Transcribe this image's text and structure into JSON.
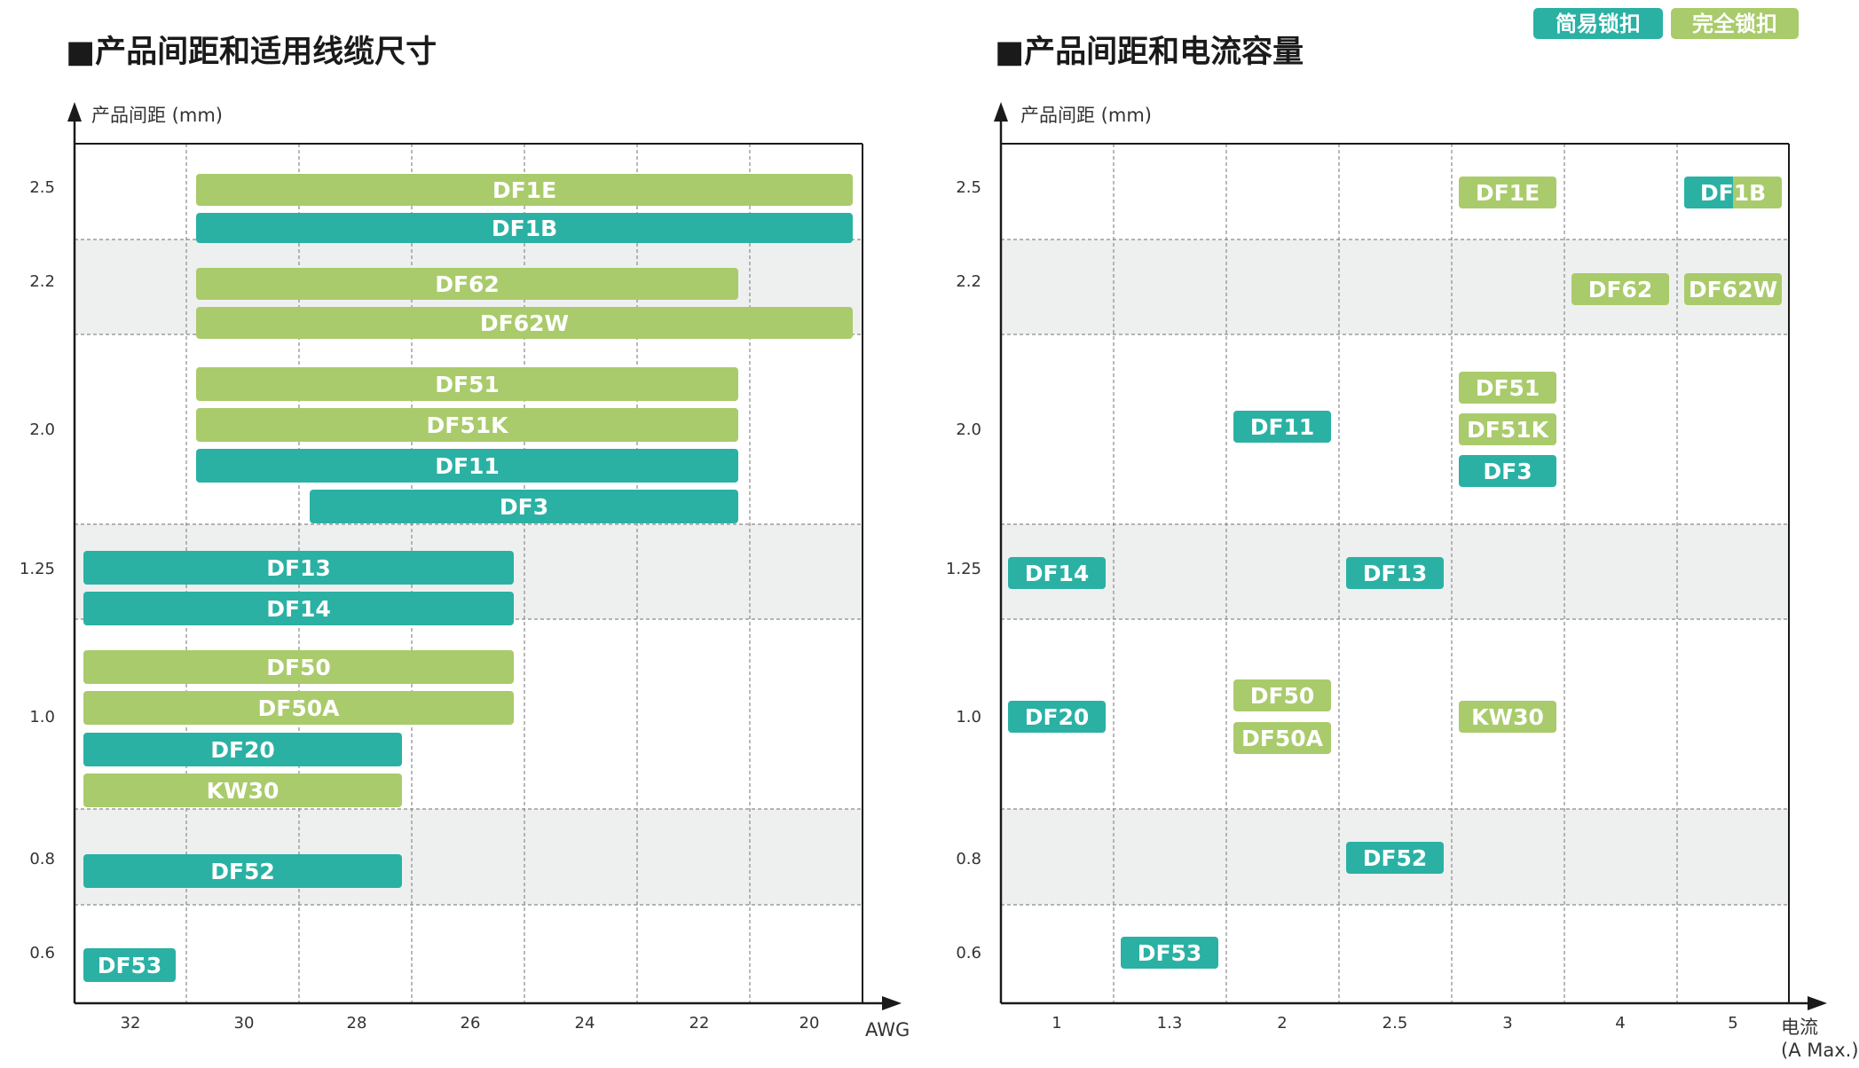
{
  "legend": [
    {
      "label": "简易锁扣",
      "color": "#2ab1a4"
    },
    {
      "label": "完全锁扣",
      "color": "#a9cb6b"
    }
  ],
  "chart_data": [
    {
      "type": "bar",
      "title": "■产品间距和适用线缆尺寸",
      "ylabel": "产品间距 (mm)",
      "xlabel": "AWG",
      "x_ticks": [
        "32",
        "30",
        "28",
        "26",
        "24",
        "22",
        "20"
      ],
      "y_ticks": [
        "2.5",
        "2.2",
        "2.0",
        "1.25",
        "1.0",
        "0.8",
        "0.6"
      ],
      "series": [
        {
          "name": "简易锁扣",
          "color": "#2ab1a4"
        },
        {
          "name": "完全锁扣",
          "color": "#a9cb6b"
        }
      ],
      "bars": [
        {
          "label": "DF1E",
          "pitch": "2.5",
          "awg_from": 30,
          "awg_to": 20,
          "series": "完全锁扣"
        },
        {
          "label": "DF1B",
          "pitch": "2.5",
          "awg_from": 30,
          "awg_to": 20,
          "series": "简易锁扣"
        },
        {
          "label": "DF62",
          "pitch": "2.2",
          "awg_from": 30,
          "awg_to": 22,
          "series": "完全锁扣"
        },
        {
          "label": "DF62W",
          "pitch": "2.2",
          "awg_from": 30,
          "awg_to": 20,
          "series": "完全锁扣"
        },
        {
          "label": "DF51",
          "pitch": "2.0",
          "awg_from": 30,
          "awg_to": 22,
          "series": "完全锁扣"
        },
        {
          "label": "DF51K",
          "pitch": "2.0",
          "awg_from": 30,
          "awg_to": 22,
          "series": "完全锁扣"
        },
        {
          "label": "DF11",
          "pitch": "2.0",
          "awg_from": 30,
          "awg_to": 22,
          "series": "简易锁扣"
        },
        {
          "label": "DF3",
          "pitch": "2.0",
          "awg_from": 28,
          "awg_to": 22,
          "series": "简易锁扣"
        },
        {
          "label": "DF13",
          "pitch": "1.25",
          "awg_from": 32,
          "awg_to": 26,
          "series": "简易锁扣"
        },
        {
          "label": "DF14",
          "pitch": "1.25",
          "awg_from": 32,
          "awg_to": 26,
          "series": "简易锁扣"
        },
        {
          "label": "DF50",
          "pitch": "1.0",
          "awg_from": 32,
          "awg_to": 26,
          "series": "完全锁扣"
        },
        {
          "label": "DF50A",
          "pitch": "1.0",
          "awg_from": 32,
          "awg_to": 26,
          "series": "完全锁扣"
        },
        {
          "label": "DF20",
          "pitch": "1.0",
          "awg_from": 32,
          "awg_to": 28,
          "series": "简易锁扣"
        },
        {
          "label": "KW30",
          "pitch": "1.0",
          "awg_from": 32,
          "awg_to": 28,
          "series": "完全锁扣"
        },
        {
          "label": "DF52",
          "pitch": "0.8",
          "awg_from": 32,
          "awg_to": 28,
          "series": "简易锁扣"
        },
        {
          "label": "DF53",
          "pitch": "0.6",
          "awg_from": 32,
          "awg_to": 32,
          "series": "简易锁扣"
        }
      ]
    },
    {
      "type": "scatter",
      "title": "■产品间距和电流容量",
      "ylabel": "产品间距 (mm)",
      "xlabel_line1": "电流",
      "xlabel_line2": "(A Max.)",
      "x_ticks": [
        "1",
        "1.3",
        "2",
        "2.5",
        "3",
        "4",
        "5"
      ],
      "y_ticks": [
        "2.5",
        "2.2",
        "2.0",
        "1.25",
        "1.0",
        "0.8",
        "0.6"
      ],
      "points": [
        {
          "label": "DF1E",
          "pitch": "2.5",
          "current": "3",
          "series": "完全锁扣"
        },
        {
          "label": "DF1B",
          "pitch": "2.5",
          "current": "5",
          "series": "简易锁扣/完全锁扣"
        },
        {
          "label": "DF62",
          "pitch": "2.2",
          "current": "4",
          "series": "完全锁扣"
        },
        {
          "label": "DF62W",
          "pitch": "2.2",
          "current": "5",
          "series": "完全锁扣"
        },
        {
          "label": "DF51",
          "pitch": "2.0",
          "current": "3",
          "series": "完全锁扣"
        },
        {
          "label": "DF51K",
          "pitch": "2.0",
          "current": "3",
          "series": "完全锁扣"
        },
        {
          "label": "DF3",
          "pitch": "2.0",
          "current": "3",
          "series": "简易锁扣"
        },
        {
          "label": "DF11",
          "pitch": "2.0",
          "current": "2",
          "series": "简易锁扣"
        },
        {
          "label": "DF14",
          "pitch": "1.25",
          "current": "1",
          "series": "简易锁扣"
        },
        {
          "label": "DF13",
          "pitch": "1.25",
          "current": "2.5",
          "series": "简易锁扣"
        },
        {
          "label": "DF20",
          "pitch": "1.0",
          "current": "1",
          "series": "简易锁扣"
        },
        {
          "label": "DF50",
          "pitch": "1.0",
          "current": "2",
          "series": "完全锁扣"
        },
        {
          "label": "DF50A",
          "pitch": "1.0",
          "current": "2",
          "series": "完全锁扣"
        },
        {
          "label": "KW30",
          "pitch": "1.0",
          "current": "3",
          "series": "完全锁扣"
        },
        {
          "label": "DF52",
          "pitch": "0.8",
          "current": "2.5",
          "series": "简易锁扣"
        },
        {
          "label": "DF53",
          "pitch": "0.6",
          "current": "1.3",
          "series": "简易锁扣"
        }
      ]
    }
  ]
}
